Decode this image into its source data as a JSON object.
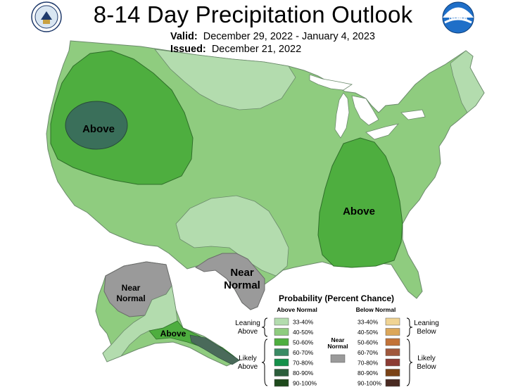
{
  "header": {
    "title": "8-14 Day Precipitation Outlook",
    "valid_label": "Valid:",
    "valid_value": "December 29, 2022 - January 4, 2023",
    "issued_label": "Issued:",
    "issued_value": "December 21, 2022"
  },
  "logos": {
    "left": "us-department-of-commerce-seal",
    "right": "noaa-logo",
    "right_text": "NOAA"
  },
  "map_labels": {
    "west_above": "Above",
    "southeast_above": "Above",
    "texas_near": "Near",
    "texas_normal": "Normal",
    "alaska_near": "Near",
    "alaska_normal": "Normal",
    "alaska_above": "Above"
  },
  "legend": {
    "title": "Probability (Percent Chance)",
    "above_header": "Above Normal",
    "below_header": "Below Normal",
    "near_header_1": "Near",
    "near_header_2": "Normal",
    "leaning_above_1": "Leaning",
    "leaning_above_2": "Above",
    "likely_above_1": "Likely",
    "likely_above_2": "Above",
    "leaning_below_1": "Leaning",
    "leaning_below_2": "Below",
    "likely_below_1": "Likely",
    "likely_below_2": "Below",
    "above_rows": [
      {
        "range": "33-40%",
        "color": "#b3dcae"
      },
      {
        "range": "40-50%",
        "color": "#8fcc7f"
      },
      {
        "range": "50-60%",
        "color": "#4eae3f"
      },
      {
        "range": "60-70%",
        "color": "#3a8a64"
      },
      {
        "range": "70-80%",
        "color": "#15904a"
      },
      {
        "range": "80-90%",
        "color": "#2b5d3b"
      },
      {
        "range": "90-100%",
        "color": "#1e4a1c"
      }
    ],
    "below_rows": [
      {
        "range": "33-40%",
        "color": "#f0d494"
      },
      {
        "range": "40-50%",
        "color": "#dca75a"
      },
      {
        "range": "50-60%",
        "color": "#c27338"
      },
      {
        "range": "60-70%",
        "color": "#a0583c"
      },
      {
        "range": "70-80%",
        "color": "#8b3b33"
      },
      {
        "range": "80-90%",
        "color": "#7a4216"
      },
      {
        "range": "90-100%",
        "color": "#4a2a22"
      }
    ],
    "near_color": "#9a9a9a"
  },
  "colors": {
    "background_land": "#8fcc7f",
    "light_green": "#b3dcae",
    "medium_green": "#4eae3f",
    "dark_green": "#3a6f5a",
    "gray": "#9a9a9a",
    "border": "#6b8a6b"
  }
}
